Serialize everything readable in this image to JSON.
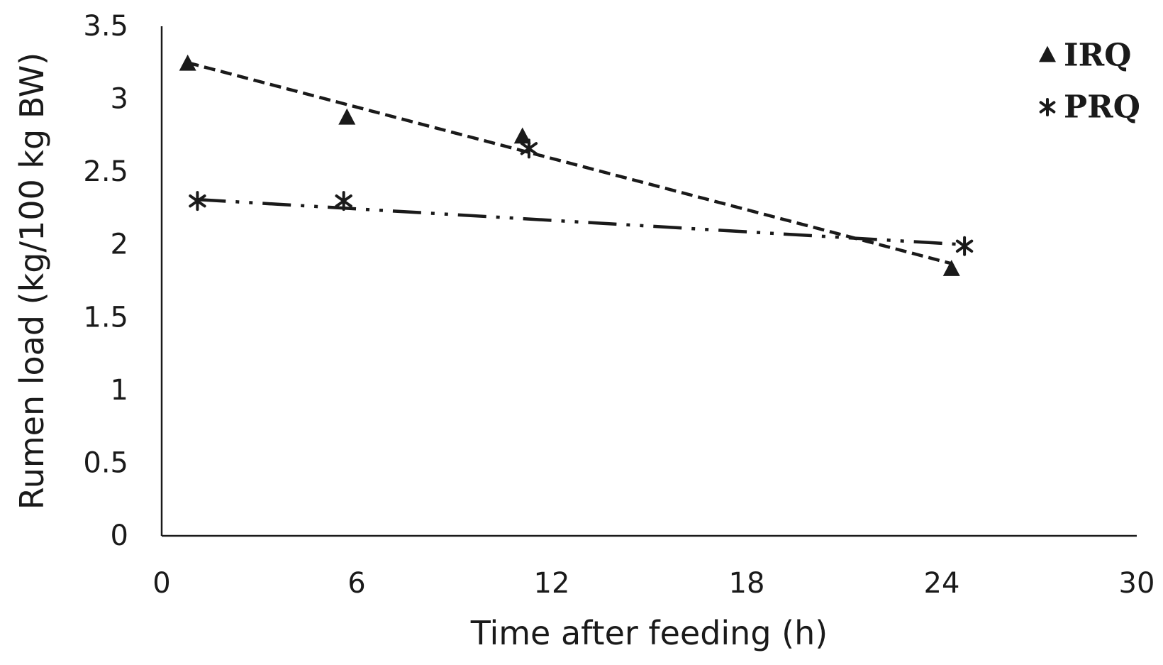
{
  "chart_data": {
    "type": "scatter",
    "title": "",
    "xlabel": "Time after feeding (h)",
    "ylabel": "Rumen load (kg/100 kg BW)",
    "xlim": [
      0,
      30
    ],
    "ylim": [
      0,
      3.5
    ],
    "xticks": [
      "0",
      "6",
      "12",
      "18",
      "24",
      "30"
    ],
    "yticks": [
      "0",
      "0.5",
      "1",
      "1.5",
      "2",
      "2.5",
      "3",
      "3.5"
    ],
    "grid": false,
    "legend_position": "top-right",
    "series": [
      {
        "name": "IRQ",
        "marker": "triangle",
        "x": [
          0.8,
          5.7,
          11.1,
          24.3
        ],
        "y": [
          3.25,
          2.88,
          2.75,
          1.84
        ],
        "trendline": {
          "style": "dashed",
          "x": [
            0.8,
            24.3
          ],
          "y": [
            3.25,
            1.87
          ]
        }
      },
      {
        "name": "PRQ",
        "marker": "asterisk",
        "x": [
          1.1,
          5.6,
          11.3,
          24.7
        ],
        "y": [
          2.3,
          2.3,
          2.66,
          1.99
        ],
        "trendline": {
          "style": "dash-dot-dot",
          "x": [
            1.1,
            24.7
          ],
          "y": [
            2.31,
            2.0
          ]
        }
      }
    ]
  },
  "colors": {
    "ink": "#1a1a1a",
    "background": "#ffffff"
  }
}
